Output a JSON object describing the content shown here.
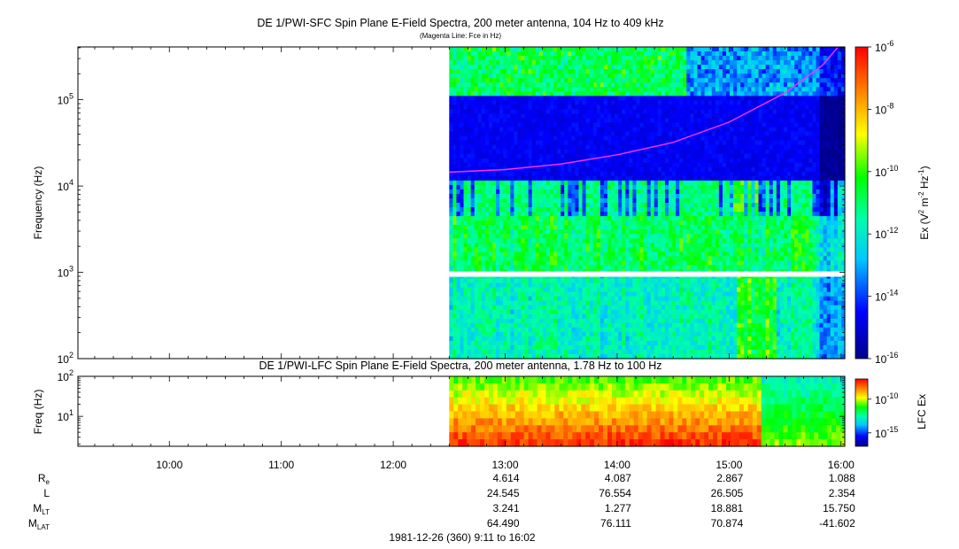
{
  "chart_data": [
    {
      "type": "heatmap",
      "title": "DE 1/PWI-SFC  Spin Plane E-Field Spectra, 200 meter antenna, 104 Hz to 409 kHz",
      "subtitle": "(Magenta Line: Fce in Hz)",
      "ylabel": "Frequency (Hz)",
      "yscale": "log",
      "ylim": [
        100,
        409000
      ],
      "yticks": [
        {
          "value": 100,
          "base": "10",
          "exp": "2"
        },
        {
          "value": 1000,
          "base": "10",
          "exp": "3"
        },
        {
          "value": 10000,
          "base": "10",
          "exp": "4"
        },
        {
          "value": 100000,
          "base": "10",
          "exp": "5"
        }
      ],
      "colorbar": {
        "label_parts": [
          "Ex (V",
          "2",
          " m",
          "-2",
          " Hz",
          "-1",
          ")"
        ],
        "scale": "log",
        "range": [
          1e-16,
          1e-06
        ],
        "ticks": [
          {
            "value": 1e-16,
            "base": "10",
            "exp": "-16"
          },
          {
            "value": 1e-14,
            "base": "10",
            "exp": "-14"
          },
          {
            "value": 1e-12,
            "base": "10",
            "exp": "-12"
          },
          {
            "value": 1e-10,
            "base": "10",
            "exp": "-10"
          },
          {
            "value": 1e-08,
            "base": "10",
            "exp": "-8"
          },
          {
            "value": 1e-06,
            "base": "10",
            "exp": "-6"
          }
        ]
      },
      "data_start_time": "12:30",
      "fce_line": {
        "color": "#ff33ff",
        "points": [
          {
            "t": "12:30",
            "hz": 14500
          },
          {
            "t": "13:00",
            "hz": 15500
          },
          {
            "t": "13:30",
            "hz": 18000
          },
          {
            "t": "14:00",
            "hz": 23000
          },
          {
            "t": "14:30",
            "hz": 32000
          },
          {
            "t": "15:00",
            "hz": 55000
          },
          {
            "t": "15:30",
            "hz": 120000
          },
          {
            "t": "15:50",
            "hz": 250000
          },
          {
            "t": "15:58",
            "hz": 400000
          }
        ]
      }
    },
    {
      "type": "heatmap",
      "title": "DE 1/PWI-LFC  Spin Plane E-Field Spectra, 200 meter antenna, 1.78 Hz to 100 Hz",
      "ylabel": "Freq (Hz)",
      "yscale": "log",
      "ylim": [
        1.78,
        100
      ],
      "yticks": [
        {
          "value": 10,
          "base": "10",
          "exp": "1"
        },
        {
          "value": 100,
          "base": "10",
          "exp": "2"
        }
      ],
      "colorbar": {
        "label": "LFC Ex",
        "scale": "log",
        "range": [
          1e-17,
          1e-07
        ],
        "ticks": [
          {
            "value": 1e-15,
            "base": "10",
            "exp": "-15"
          },
          {
            "value": 1e-10,
            "base": "10",
            "exp": "-10"
          }
        ]
      },
      "data_start_time": "12:30"
    }
  ],
  "time_axis": {
    "start": "09:11",
    "end": "16:02",
    "tick_labels": [
      "10:00",
      "11:00",
      "12:00",
      "13:00",
      "14:00",
      "15:00",
      "16:00"
    ]
  },
  "ephemeris": {
    "rows": [
      {
        "label": "R",
        "sub": "e",
        "values": [
          "4.614",
          "4.087",
          "2.867",
          "1.088"
        ]
      },
      {
        "label": "L",
        "sub": "",
        "values": [
          "24.545",
          "76.554",
          "26.505",
          "2.354"
        ]
      },
      {
        "label": "M",
        "sub": "LT",
        "values": [
          "3.241",
          "1.277",
          "18.881",
          "15.750"
        ]
      },
      {
        "label": "M",
        "sub": "LAT",
        "values": [
          "64.490",
          "76.111",
          "70.874",
          "-41.602"
        ]
      }
    ],
    "times": [
      "13:00",
      "14:00",
      "15:00",
      "16:00"
    ]
  },
  "footer": "1981-12-26 (360) 9:11 to 16:02"
}
